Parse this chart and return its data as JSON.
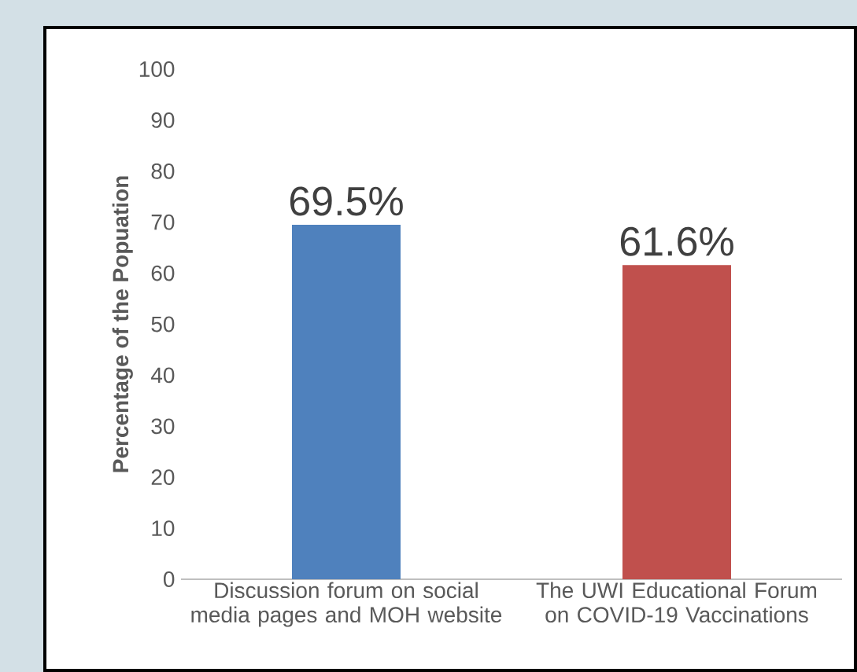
{
  "chart_data": {
    "type": "bar",
    "ylabel": "Percentage of the Popuation",
    "categories": [
      "Discussion forum on social media pages and MOH website",
      "The UWI Educational Forum on COVID-19 Vaccinations"
    ],
    "values": [
      69.5,
      61.6
    ],
    "colors": [
      "#4f81bd",
      "#c0504d"
    ],
    "value_labels": [
      "69.5%",
      "61.6%"
    ],
    "ylim": [
      0,
      100
    ],
    "yticks": [
      0,
      10,
      20,
      30,
      40,
      50,
      60,
      70,
      80,
      90,
      100
    ],
    "grid": false
  }
}
